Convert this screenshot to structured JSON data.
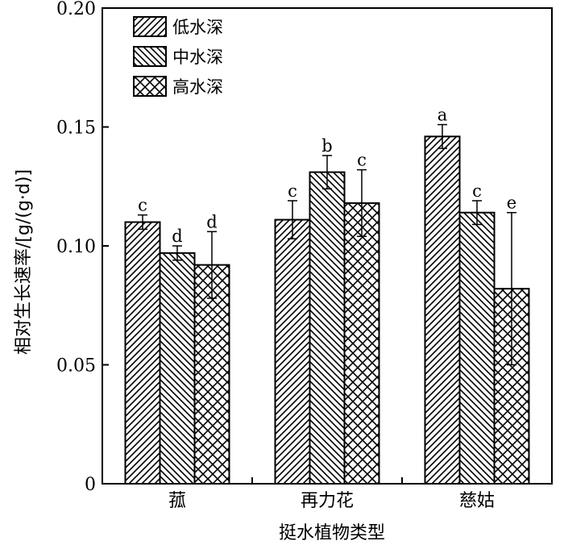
{
  "chart_data": {
    "type": "bar",
    "title": "",
    "xlabel": "挺水植物类型",
    "ylabel": "相对生长速率/[g/(g·d)]",
    "ylim": [
      0,
      0.2
    ],
    "yticks": [
      "0",
      "0.05",
      "0.10",
      "0.15",
      "0.20"
    ],
    "categories": [
      "菰",
      "再力花",
      "慈姑"
    ],
    "legend_position": "top-left",
    "grid": false,
    "series": [
      {
        "name": "低水深",
        "pattern": "diagonal-up",
        "values": [
          0.11,
          0.111,
          0.146
        ],
        "errors": [
          0.003,
          0.008,
          0.005
        ],
        "labels": [
          "c",
          "c",
          "a"
        ]
      },
      {
        "name": "中水深",
        "pattern": "diagonal-down",
        "values": [
          0.097,
          0.131,
          0.114
        ],
        "errors": [
          0.003,
          0.007,
          0.005
        ],
        "labels": [
          "d",
          "b",
          "c"
        ]
      },
      {
        "name": "高水深",
        "pattern": "crosshatch",
        "values": [
          0.092,
          0.118,
          0.082
        ],
        "errors": [
          0.014,
          0.014,
          0.032
        ],
        "labels": [
          "d",
          "c",
          "e"
        ]
      }
    ]
  }
}
